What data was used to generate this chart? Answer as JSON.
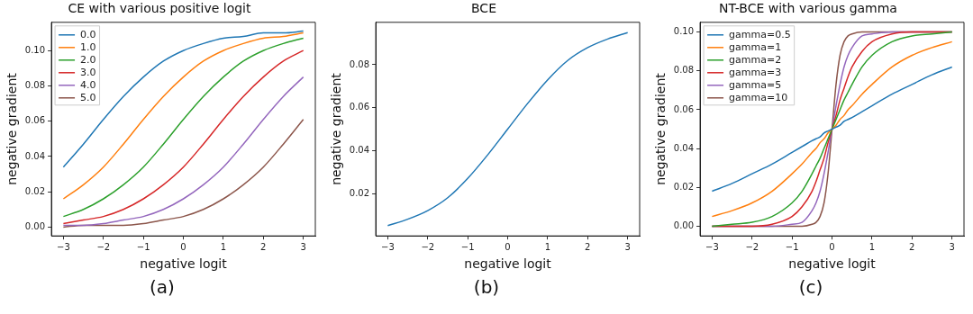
{
  "chart_data": [
    {
      "type": "line",
      "title": "CE with various positive logit",
      "xlabel": "negative logit",
      "ylabel": "negative gradient",
      "annotations": [
        "(a)"
      ],
      "legend": "top left",
      "grid": false,
      "x": [
        -3,
        -2.5,
        -2,
        -1.5,
        -1,
        -0.5,
        0,
        0.5,
        1,
        1.5,
        2,
        2.5,
        3
      ],
      "xlim": [
        -3.3,
        3.3
      ],
      "xticks": [
        {
          "value": -3,
          "label": "−3"
        },
        {
          "value": -2,
          "label": "−2"
        },
        {
          "value": -1,
          "label": "−1"
        },
        0,
        1,
        2,
        3
      ],
      "ylim": [
        -0.005,
        0.116
      ],
      "yticks": [
        {
          "value": 0,
          "label": "0.00"
        },
        {
          "value": 0.02,
          "label": "0.02"
        },
        {
          "value": 0.04,
          "label": "0.04"
        },
        {
          "value": 0.06,
          "label": "0.06"
        },
        {
          "value": 0.08,
          "label": "0.08"
        },
        {
          "value": 0.1,
          "label": "0.10"
        }
      ],
      "series": [
        {
          "name": "0.0",
          "color": "#1f77b4",
          "values": [
            0.034,
            0.047,
            0.061,
            0.074,
            0.085,
            0.094,
            0.1,
            0.104,
            0.107,
            0.108,
            0.11,
            0.11,
            0.111
          ]
        },
        {
          "name": "1.0",
          "color": "#ff7f0e",
          "values": [
            0.016,
            0.024,
            0.034,
            0.047,
            0.061,
            0.074,
            0.085,
            0.094,
            0.1,
            0.104,
            0.107,
            0.108,
            0.11
          ]
        },
        {
          "name": "2.0",
          "color": "#2ca02c",
          "values": [
            0.006,
            0.01,
            0.016,
            0.024,
            0.034,
            0.047,
            0.061,
            0.074,
            0.085,
            0.094,
            0.1,
            0.104,
            0.107
          ]
        },
        {
          "name": "3.0",
          "color": "#d62728",
          "values": [
            0.002,
            0.004,
            0.006,
            0.01,
            0.016,
            0.024,
            0.034,
            0.047,
            0.061,
            0.074,
            0.085,
            0.094,
            0.1
          ]
        },
        {
          "name": "4.0",
          "color": "#9467bd",
          "values": [
            0.001,
            0.001,
            0.002,
            0.004,
            0.006,
            0.01,
            0.016,
            0.024,
            0.034,
            0.047,
            0.061,
            0.074,
            0.085
          ]
        },
        {
          "name": "5.0",
          "color": "#8c564b",
          "values": [
            0,
            0.001,
            0.001,
            0.001,
            0.002,
            0.004,
            0.006,
            0.01,
            0.016,
            0.024,
            0.034,
            0.047,
            0.061
          ]
        }
      ]
    },
    {
      "type": "line",
      "title": "BCE",
      "xlabel": "negative logit",
      "ylabel": "negative gradient",
      "annotations": [
        "(b)"
      ],
      "grid": false,
      "x": [
        -3,
        -2.5,
        -2,
        -1.5,
        -1,
        -0.5,
        0,
        0.5,
        1,
        1.5,
        2,
        2.5,
        3
      ],
      "xlim": [
        -3.3,
        3.3
      ],
      "xticks": [
        {
          "value": -3,
          "label": "−3"
        },
        {
          "value": -2,
          "label": "−2"
        },
        {
          "value": -1,
          "label": "−1"
        },
        0,
        1,
        2,
        3
      ],
      "ylim": [
        0.0002,
        0.0998
      ],
      "yticks": [
        0.02,
        0.04,
        0.06,
        0.08
      ],
      "series": [
        {
          "color": "#1f77b4",
          "values": [
            0.005,
            0.008,
            0.012,
            0.018,
            0.027,
            0.038,
            0.05,
            0.062,
            0.073,
            0.082,
            0.088,
            0.092,
            0.095
          ]
        }
      ]
    },
    {
      "type": "line",
      "title": "NT-BCE with various gamma",
      "xlabel": "negative logit",
      "ylabel": "negative gradient",
      "annotations": [
        "(c)"
      ],
      "legend": "top left",
      "grid": false,
      "x": [
        -3,
        -2.5,
        -2,
        -1.5,
        -1,
        -0.75,
        -0.5,
        -0.4,
        -0.3,
        -0.2,
        -0.1,
        0,
        0.1,
        0.2,
        0.3,
        0.4,
        0.5,
        0.75,
        1,
        1.5,
        2,
        2.5,
        3
      ],
      "xlim": [
        -3.3,
        3.3
      ],
      "xticks": [
        {
          "value": -3,
          "label": "−3"
        },
        {
          "value": -2,
          "label": "−2"
        },
        {
          "value": -1,
          "label": "−1"
        },
        0,
        1,
        2,
        3
      ],
      "ylim": [
        -0.005,
        0.105
      ],
      "yticks": [
        {
          "value": 0,
          "label": "0.00"
        },
        {
          "value": 0.02,
          "label": "0.02"
        },
        {
          "value": 0.04,
          "label": "0.04"
        },
        {
          "value": 0.06,
          "label": "0.06"
        },
        {
          "value": 0.08,
          "label": "0.08"
        },
        {
          "value": 0.1,
          "label": "0.10"
        }
      ],
      "series": [
        {
          "name": "gamma=0.5",
          "color": "#1f77b4",
          "values": [
            0.018,
            0.022,
            0.027,
            0.032,
            0.038,
            0.041,
            0.044,
            0.045,
            0.046,
            0.048,
            0.049,
            0.05,
            0.051,
            0.052,
            0.054,
            0.055,
            0.056,
            0.059,
            0.062,
            0.068,
            0.073,
            0.078,
            0.082
          ]
        },
        {
          "name": "gamma=1",
          "color": "#ff7f0e",
          "values": [
            0.005,
            0.008,
            0.012,
            0.018,
            0.027,
            0.032,
            0.038,
            0.04,
            0.043,
            0.045,
            0.048,
            0.05,
            0.052,
            0.055,
            0.057,
            0.06,
            0.062,
            0.068,
            0.073,
            0.082,
            0.088,
            0.092,
            0.095
          ]
        },
        {
          "name": "gamma=2",
          "color": "#2ca02c",
          "values": [
            0,
            0.001,
            0.002,
            0.005,
            0.012,
            0.018,
            0.027,
            0.031,
            0.035,
            0.04,
            0.045,
            0.05,
            0.055,
            0.06,
            0.065,
            0.069,
            0.073,
            0.082,
            0.088,
            0.095,
            0.098,
            0.099,
            0.1
          ]
        },
        {
          "name": "gamma=3",
          "color": "#d62728",
          "values": [
            0,
            0,
            0,
            0.001,
            0.005,
            0.01,
            0.018,
            0.023,
            0.029,
            0.035,
            0.043,
            0.05,
            0.057,
            0.065,
            0.071,
            0.077,
            0.082,
            0.09,
            0.095,
            0.099,
            0.1,
            0.1,
            0.1
          ]
        },
        {
          "name": "gamma=5",
          "color": "#9467bd",
          "values": [
            0,
            0,
            0,
            0,
            0.001,
            0.002,
            0.008,
            0.012,
            0.018,
            0.027,
            0.038,
            0.05,
            0.062,
            0.073,
            0.082,
            0.088,
            0.092,
            0.098,
            0.099,
            0.1,
            0.1,
            0.1,
            0.1
          ]
        },
        {
          "name": "gamma=10",
          "color": "#8c564b",
          "values": [
            0,
            0,
            0,
            0,
            0,
            0,
            0.001,
            0.002,
            0.005,
            0.012,
            0.027,
            0.05,
            0.073,
            0.088,
            0.095,
            0.098,
            0.099,
            0.1,
            0.1,
            0.1,
            0.1,
            0.1,
            0.1
          ]
        }
      ]
    }
  ]
}
